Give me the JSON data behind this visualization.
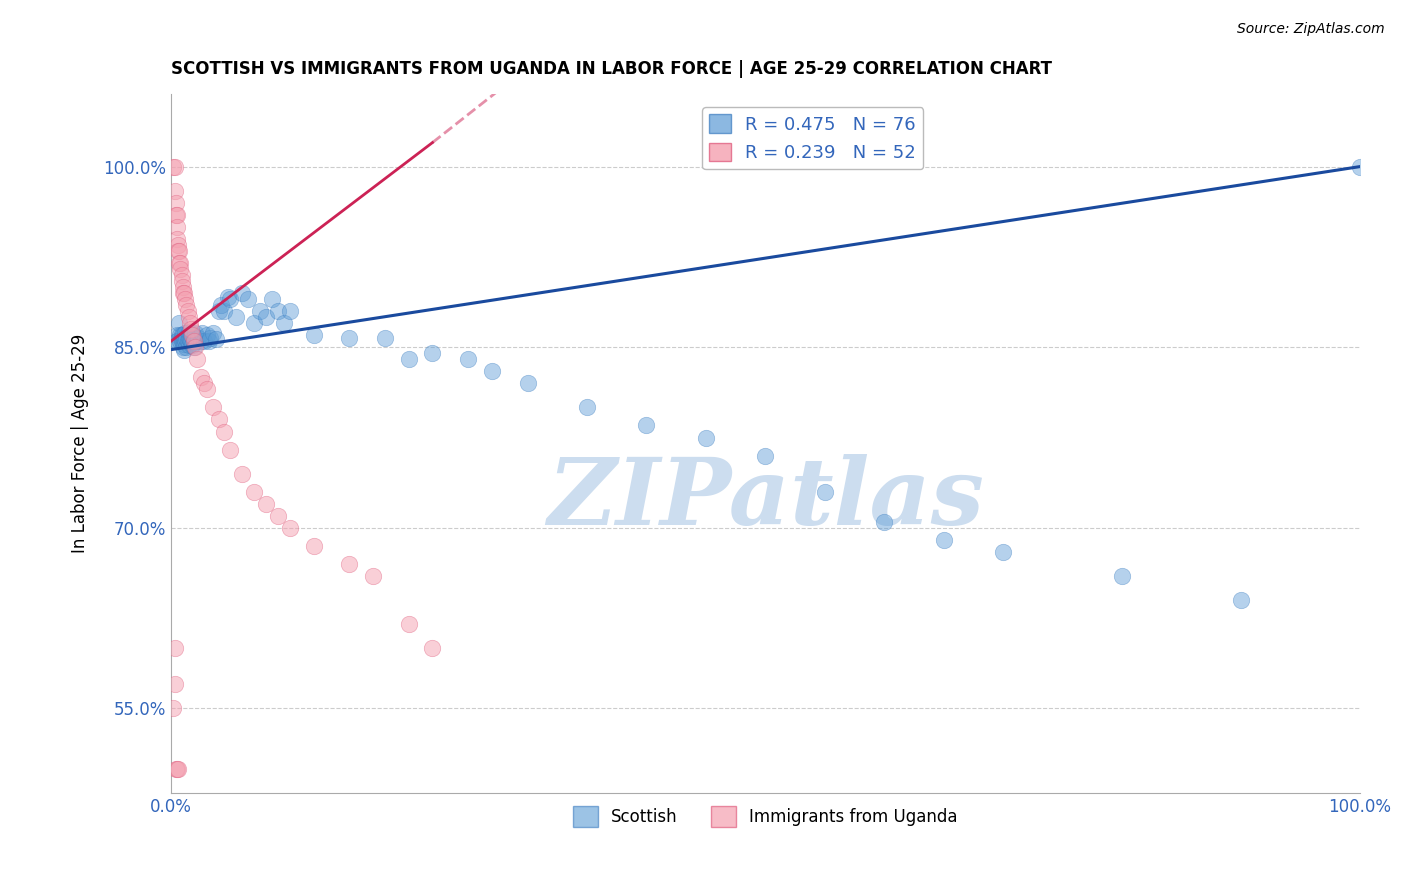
{
  "title": "SCOTTISH VS IMMIGRANTS FROM UGANDA IN LABOR FORCE | AGE 25-29 CORRELATION CHART",
  "source": "Source: ZipAtlas.com",
  "ylabel": "In Labor Force | Age 25-29",
  "xlim": [
    0.0,
    1.0
  ],
  "ylim": [
    0.48,
    1.06
  ],
  "yticks": [
    0.55,
    0.7,
    0.85,
    1.0
  ],
  "ytick_labels": [
    "55.0%",
    "70.0%",
    "85.0%",
    "100.0%"
  ],
  "xticks": [
    0.0,
    0.25,
    0.5,
    0.75,
    1.0
  ],
  "xtick_labels": [
    "0.0%",
    "",
    "",
    "",
    "100.0%"
  ],
  "legend_top": [
    {
      "label": "R = 0.475   N = 76",
      "color": "#5b9bd5"
    },
    {
      "label": "R = 0.239   N = 52",
      "color": "#f4a0b0"
    }
  ],
  "scatter_blue": {
    "color": "#5b9bd5",
    "alpha": 0.45,
    "edgecolor": "#3a7bbf",
    "size": 140,
    "x": [
      0.005,
      0.005,
      0.005,
      0.007,
      0.008,
      0.008,
      0.009,
      0.009,
      0.01,
      0.01,
      0.01,
      0.011,
      0.011,
      0.011,
      0.012,
      0.012,
      0.013,
      0.013,
      0.014,
      0.015,
      0.015,
      0.015,
      0.016,
      0.017,
      0.017,
      0.018,
      0.018,
      0.019,
      0.019,
      0.02,
      0.02,
      0.021,
      0.022,
      0.023,
      0.025,
      0.026,
      0.028,
      0.03,
      0.032,
      0.033,
      0.035,
      0.038,
      0.04,
      0.042,
      0.045,
      0.048,
      0.05,
      0.055,
      0.06,
      0.065,
      0.07,
      0.075,
      0.08,
      0.085,
      0.09,
      0.095,
      0.1,
      0.12,
      0.15,
      0.18,
      0.2,
      0.22,
      0.25,
      0.27,
      0.3,
      0.35,
      0.4,
      0.45,
      0.5,
      0.55,
      0.6,
      0.65,
      0.7,
      0.8,
      0.9,
      1.0
    ],
    "y": [
      0.855,
      0.86,
      0.855,
      0.87,
      0.86,
      0.855,
      0.86,
      0.855,
      0.85,
      0.86,
      0.855,
      0.848,
      0.853,
      0.858,
      0.862,
      0.855,
      0.85,
      0.858,
      0.855,
      0.852,
      0.858,
      0.863,
      0.856,
      0.86,
      0.855,
      0.862,
      0.852,
      0.858,
      0.85,
      0.855,
      0.862,
      0.857,
      0.855,
      0.858,
      0.855,
      0.862,
      0.855,
      0.86,
      0.855,
      0.858,
      0.862,
      0.857,
      0.88,
      0.885,
      0.88,
      0.892,
      0.89,
      0.875,
      0.895,
      0.89,
      0.87,
      0.88,
      0.875,
      0.89,
      0.88,
      0.87,
      0.88,
      0.86,
      0.858,
      0.858,
      0.84,
      0.845,
      0.84,
      0.83,
      0.82,
      0.8,
      0.785,
      0.775,
      0.76,
      0.73,
      0.705,
      0.69,
      0.68,
      0.66,
      0.64,
      1.0
    ]
  },
  "scatter_pink": {
    "color": "#f4a0b0",
    "alpha": 0.5,
    "edgecolor": "#e06080",
    "size": 140,
    "x": [
      0.002,
      0.003,
      0.003,
      0.004,
      0.004,
      0.005,
      0.005,
      0.005,
      0.006,
      0.006,
      0.007,
      0.007,
      0.008,
      0.008,
      0.009,
      0.009,
      0.01,
      0.01,
      0.011,
      0.012,
      0.013,
      0.014,
      0.015,
      0.016,
      0.017,
      0.018,
      0.019,
      0.02,
      0.022,
      0.025,
      0.028,
      0.03,
      0.035,
      0.04,
      0.045,
      0.05,
      0.06,
      0.07,
      0.08,
      0.09,
      0.1,
      0.12,
      0.15,
      0.17,
      0.2,
      0.22,
      0.003,
      0.003,
      0.002,
      0.004,
      0.005,
      0.006
    ],
    "y": [
      1.0,
      1.0,
      0.98,
      0.97,
      0.96,
      0.96,
      0.95,
      0.94,
      0.935,
      0.93,
      0.93,
      0.92,
      0.92,
      0.915,
      0.91,
      0.905,
      0.9,
      0.895,
      0.895,
      0.89,
      0.885,
      0.88,
      0.875,
      0.87,
      0.865,
      0.86,
      0.855,
      0.85,
      0.84,
      0.825,
      0.82,
      0.815,
      0.8,
      0.79,
      0.78,
      0.765,
      0.745,
      0.73,
      0.72,
      0.71,
      0.7,
      0.685,
      0.67,
      0.66,
      0.62,
      0.6,
      0.6,
      0.57,
      0.55,
      0.5,
      0.5,
      0.5
    ]
  },
  "trend_blue": {
    "color": "#1a4a9e",
    "x_start": 0.0,
    "y_start": 0.848,
    "x_end": 1.0,
    "y_end": 1.0,
    "linewidth": 2.2
  },
  "trend_pink": {
    "color": "#cc2255",
    "x_start": 0.0,
    "y_start": 0.855,
    "x_end": 0.22,
    "y_end": 1.02,
    "linewidth": 2.0,
    "linestyle": "-"
  },
  "watermark": "ZIPatlas",
  "watermark_color": "#ccddef",
  "bg_color": "#ffffff",
  "grid_color": "#cccccc",
  "title_fontsize": 12,
  "axis_label_color": "#3366bb"
}
